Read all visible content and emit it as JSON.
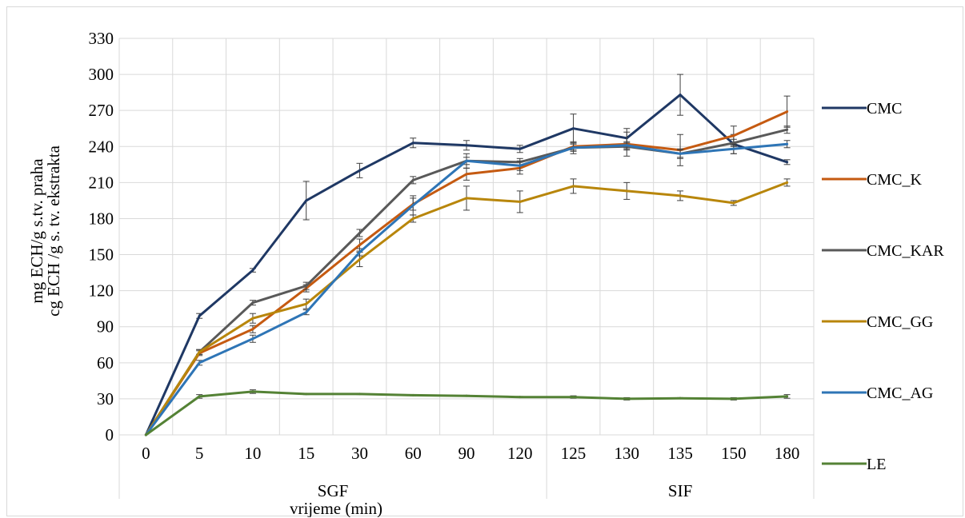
{
  "chart_data": {
    "type": "line",
    "title": "",
    "xlabel": "vrijeme (min)",
    "ylabel_lines": [
      "mg ECH/g s.tv. praha",
      "cg ECH /g s. tv. ekstrakta"
    ],
    "ylim": [
      0,
      330
    ],
    "yticks": [
      0,
      30,
      60,
      90,
      120,
      150,
      180,
      210,
      240,
      270,
      300,
      330
    ],
    "grid": true,
    "legend_position": "right",
    "categories": [
      "0",
      "5",
      "10",
      "15",
      "30",
      "60",
      "90",
      "120",
      "125",
      "130",
      "135",
      "150",
      "180"
    ],
    "groups": [
      {
        "label": "SGF",
        "from": 0,
        "to": 7
      },
      {
        "label": "SIF",
        "from": 8,
        "to": 12
      }
    ],
    "series": [
      {
        "name": "CMC",
        "color": "#1f3864",
        "values": [
          0,
          99,
          137,
          195,
          220,
          243,
          241,
          238,
          255,
          247,
          283,
          242,
          227
        ],
        "errors": [
          0,
          2,
          1.5,
          16,
          6,
          4,
          4,
          3,
          12,
          8,
          17,
          8,
          2
        ]
      },
      {
        "name": "CMC_K",
        "color": "#c55a11",
        "values": [
          0,
          68,
          88,
          122,
          158,
          192,
          217,
          222,
          240,
          242,
          237,
          249,
          269
        ],
        "errors": [
          0,
          2,
          3,
          3,
          5,
          5,
          5,
          5,
          3,
          10,
          13,
          8,
          13
        ]
      },
      {
        "name": "CMC_KAR",
        "color": "#595959",
        "values": [
          0,
          69,
          110,
          124,
          168,
          212,
          228,
          227,
          239,
          240,
          234,
          243,
          254
        ],
        "errors": [
          0,
          2,
          2,
          3,
          3,
          3,
          3,
          3,
          3,
          3,
          3,
          3,
          3
        ]
      },
      {
        "name": "CMC_GG",
        "color": "#b8860b",
        "values": [
          0,
          69,
          97,
          109,
          146,
          180,
          197,
          194,
          207,
          203,
          199,
          193,
          210
        ],
        "errors": [
          0,
          2,
          4,
          4,
          6,
          3,
          10,
          9,
          6,
          7,
          4,
          2,
          3
        ]
      },
      {
        "name": "CMC_AG",
        "color": "#2e75b6",
        "values": [
          0,
          60,
          80,
          102,
          152,
          191,
          228,
          224,
          239,
          241,
          234,
          238,
          242
        ],
        "errors": [
          0,
          2,
          3,
          2,
          3,
          8,
          6,
          4,
          5,
          3,
          4,
          4,
          3
        ]
      },
      {
        "name": "LE",
        "color": "#548235",
        "values": [
          0,
          32,
          36,
          34,
          34,
          33,
          32.5,
          31.5,
          31.5,
          30,
          30.5,
          30,
          32
        ],
        "errors": [
          0,
          1.5,
          1.5,
          0.5,
          0.5,
          0.5,
          0.5,
          0.5,
          1,
          1,
          0.5,
          1,
          1.5
        ]
      }
    ]
  }
}
